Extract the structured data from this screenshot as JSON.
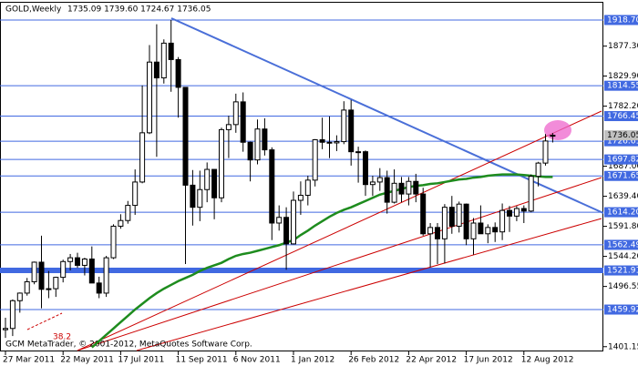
{
  "chart_data": {
    "type": "candlestick",
    "title": "GOLD,Weekly",
    "ohlc_text": "1735.09 1739.60 1724.67 1736.05",
    "footer": "GCM MetaTrader, © 2001-2012, MetaQuotes Software Corp.",
    "annotation": "38.2",
    "categories": [
      "27 Mar 2011",
      null,
      null,
      null,
      null,
      null,
      null,
      null,
      "22 May 2011",
      null,
      null,
      null,
      null,
      null,
      null,
      null,
      "17 Jul 2011",
      null,
      null,
      null,
      null,
      null,
      null,
      null,
      "11 Sep 2011",
      null,
      null,
      null,
      null,
      null,
      null,
      null,
      "6 Nov 2011",
      null,
      null,
      null,
      null,
      null,
      null,
      null,
      "1 Jan 2012",
      null,
      null,
      null,
      null,
      null,
      null,
      null,
      "26 Feb 2012",
      null,
      null,
      null,
      null,
      null,
      null,
      null,
      "22 Apr 2012",
      null,
      null,
      null,
      null,
      null,
      null,
      null,
      "17 Jun 2012",
      null,
      null,
      null,
      null,
      null,
      null,
      null,
      "12 Aug 2012",
      null,
      null,
      null,
      null
    ],
    "open": [
      1428,
      1430,
      1474,
      1486,
      1504,
      1535,
      1492,
      1493,
      1511,
      1536,
      1542,
      1530,
      1540,
      1502,
      1486,
      1542,
      1592,
      1601,
      1625,
      1662,
      1740,
      1852,
      1827,
      1882,
      1856,
      1812,
      1657,
      1622,
      1650,
      1682,
      1637,
      1745,
      1753,
      1789,
      1725,
      1697,
      1746,
      1713,
      1597,
      1606,
      1564,
      1633,
      1641,
      1665,
      1729,
      1725,
      1724,
      1726,
      1776,
      1710,
      1710,
      1658,
      1662,
      1669,
      1630,
      1660,
      1643,
      1663,
      1643,
      1580,
      1590,
      1572,
      1622,
      1592,
      1627,
      1572,
      1597,
      1580,
      1590,
      1583,
      1617,
      1608,
      1620,
      1616,
      1671,
      1692,
      1735.09
    ],
    "high": [
      1447,
      1476,
      1487,
      1510,
      1536,
      1577,
      1521,
      1512,
      1539,
      1548,
      1550,
      1542,
      1560,
      1512,
      1545,
      1595,
      1611,
      1632,
      1682,
      1815,
      1879,
      1912,
      1888,
      1918.7,
      1860,
      1812,
      1681,
      1680,
      1693,
      1682,
      1748,
      1767,
      1802,
      1804,
      1726,
      1761,
      1763,
      1717,
      1625,
      1622,
      1647,
      1663,
      1672,
      1730,
      1764,
      1766,
      1736,
      1790,
      1792,
      1718,
      1712,
      1672,
      1684,
      1680,
      1682,
      1670,
      1670,
      1675,
      1653,
      1597,
      1597,
      1627,
      1640,
      1631,
      1628,
      1605,
      1625,
      1595,
      1598,
      1628,
      1624,
      1624,
      1625,
      1674,
      1694,
      1738,
      1739.6
    ],
    "low": [
      1415,
      1418,
      1455,
      1482,
      1500,
      1462,
      1478,
      1480,
      1503,
      1522,
      1526,
      1514,
      1502,
      1478,
      1480,
      1540,
      1588,
      1596,
      1610,
      1660,
      1738,
      1702,
      1818,
      1805,
      1764,
      1532,
      1593,
      1600,
      1630,
      1603,
      1630,
      1700,
      1740,
      1710,
      1663,
      1690,
      1704,
      1570,
      1585,
      1523,
      1563,
      1610,
      1625,
      1655,
      1714,
      1700,
      1711,
      1722,
      1688,
      1661,
      1640,
      1640,
      1648,
      1612,
      1628,
      1630,
      1625,
      1630,
      1577,
      1527,
      1532,
      1533,
      1580,
      1582,
      1562,
      1547,
      1580,
      1565,
      1567,
      1570,
      1583,
      1600,
      1597,
      1614,
      1655,
      1688,
      1724.67
    ],
    "close": [
      1430,
      1474,
      1486,
      1504,
      1535,
      1492,
      1493,
      1511,
      1536,
      1542,
      1530,
      1540,
      1502,
      1486,
      1542,
      1592,
      1601,
      1625,
      1662,
      1740,
      1852,
      1827,
      1882,
      1856,
      1812,
      1657,
      1622,
      1650,
      1682,
      1637,
      1745,
      1753,
      1789,
      1725,
      1697,
      1746,
      1713,
      1597,
      1606,
      1564,
      1633,
      1641,
      1665,
      1729,
      1725,
      1724,
      1726,
      1776,
      1710,
      1710,
      1658,
      1662,
      1669,
      1630,
      1660,
      1643,
      1663,
      1643,
      1580,
      1590,
      1572,
      1622,
      1592,
      1627,
      1572,
      1597,
      1580,
      1590,
      1583,
      1617,
      1608,
      1620,
      1616,
      1671,
      1692,
      1727,
      1736.05
    ],
    "moving_average": {
      "color": "#1e8c1e",
      "values": [
        null,
        null,
        null,
        null,
        null,
        null,
        null,
        null,
        null,
        null,
        null,
        null,
        1400,
        1410,
        1420,
        1430,
        1440,
        1450,
        1460,
        1469,
        1478,
        1486,
        1493,
        1499,
        1505,
        1510,
        1515,
        1521,
        1526,
        1530,
        1534,
        1540,
        1545,
        1548,
        1550,
        1553,
        1556,
        1559,
        1562,
        1566,
        1570,
        1578,
        1585,
        1593,
        1600,
        1607,
        1613,
        1618,
        1622,
        1627,
        1632,
        1637,
        1642,
        1645,
        1648,
        1651,
        1654,
        1656,
        1657,
        1659,
        1660,
        1662,
        1664,
        1666,
        1667,
        1669,
        1670,
        1672,
        1673,
        1674,
        1674,
        1674,
        1673,
        1672,
        1671,
        1670,
        1670
      ]
    },
    "up_color": "#ffffff",
    "down_color": "#000000",
    "ylim": [
      1393.6,
      1947.5
    ],
    "yticks": [
      {
        "value": 1877.3,
        "label": "1877.30"
      },
      {
        "value": 1829.9,
        "label": "1829.90"
      },
      {
        "value": 1782.2,
        "label": "1782.20"
      },
      {
        "value": 1687,
        "label": "1687.00"
      },
      {
        "value": 1639.4,
        "label": "1639.40"
      },
      {
        "value": 1591.8,
        "label": "1591.80"
      },
      {
        "value": 1544.2,
        "label": "1544.20"
      },
      {
        "value": 1496.55,
        "label": "1496.55"
      },
      {
        "value": 1401.15,
        "label": "1401.15"
      }
    ],
    "levels": [
      {
        "value": 1918.7,
        "label": "1918.70"
      },
      {
        "value": 1814.55,
        "label": "1814.55"
      },
      {
        "value": 1766.45,
        "label": "1766.45"
      },
      {
        "value": 1726.61,
        "label": "1726.61"
      },
      {
        "value": 1697.82,
        "label": "1697.82"
      },
      {
        "value": 1671.65,
        "label": "1671.65"
      },
      {
        "value": 1614.2,
        "label": "1614.20"
      },
      {
        "value": 1562.49,
        "label": "1562.49"
      },
      {
        "value": 1521.91,
        "label": "1521.91"
      },
      {
        "value": 1459.92,
        "label": "1459.92"
      }
    ],
    "level_color": "#4169e1",
    "current": {
      "value": 1736.05,
      "label": "1736.05"
    }
  }
}
